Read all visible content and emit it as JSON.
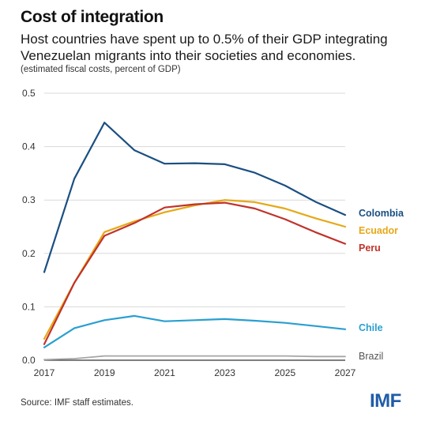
{
  "header": {
    "title": "Cost of integration",
    "subtitle_line1": "Host countries have spent up to 0.5% of their GDP integrating",
    "subtitle_line2": "Venezuelan migrants into their societies and economies.",
    "note": "(estimated fiscal costs, percent of GDP)"
  },
  "footer": {
    "source": "Source: IMF staff estimates.",
    "logo_text": "IMF",
    "logo_color": "#1f5ca8"
  },
  "chart_data": {
    "type": "line",
    "x": [
      2017,
      2018,
      2019,
      2020,
      2021,
      2022,
      2023,
      2024,
      2025,
      2026,
      2027
    ],
    "xticks": [
      2017,
      2019,
      2021,
      2023,
      2025,
      2027
    ],
    "xtick_labels": [
      "2017",
      "2019",
      "2021",
      "2023",
      "2025",
      "2027"
    ],
    "yticks": [
      0,
      0.1,
      0.2,
      0.3,
      0.4,
      0.5
    ],
    "ytick_labels": [
      "0.0",
      "0.1",
      "0.2",
      "0.3",
      "0.4",
      "0.5"
    ],
    "xlim": [
      2017,
      2027
    ],
    "ylim": [
      0,
      0.5
    ],
    "grid": "horizontal",
    "legend": "direct labels at line ends",
    "series": [
      {
        "name": "Colombia",
        "color": "#1a4f82",
        "values": [
          0.165,
          0.34,
          0.445,
          0.393,
          0.368,
          0.369,
          0.367,
          0.351,
          0.327,
          0.297,
          0.272
        ]
      },
      {
        "name": "Ecuador",
        "color": "#e6a817",
        "values": [
          0.04,
          0.145,
          0.24,
          0.26,
          0.277,
          0.29,
          0.3,
          0.296,
          0.284,
          0.266,
          0.25
        ]
      },
      {
        "name": "Peru",
        "color": "#c0322b",
        "values": [
          0.03,
          0.145,
          0.233,
          0.257,
          0.286,
          0.292,
          0.295,
          0.284,
          0.264,
          0.24,
          0.218
        ]
      },
      {
        "name": "Chile",
        "color": "#2a9fd0",
        "values": [
          0.024,
          0.06,
          0.075,
          0.083,
          0.073,
          0.075,
          0.077,
          0.074,
          0.07,
          0.064,
          0.058
        ]
      },
      {
        "name": "Brazil",
        "color": "#a6a6a6",
        "values": [
          0.001,
          0.003,
          0.008,
          0.008,
          0.008,
          0.008,
          0.008,
          0.008,
          0.008,
          0.007,
          0.007
        ]
      }
    ]
  }
}
